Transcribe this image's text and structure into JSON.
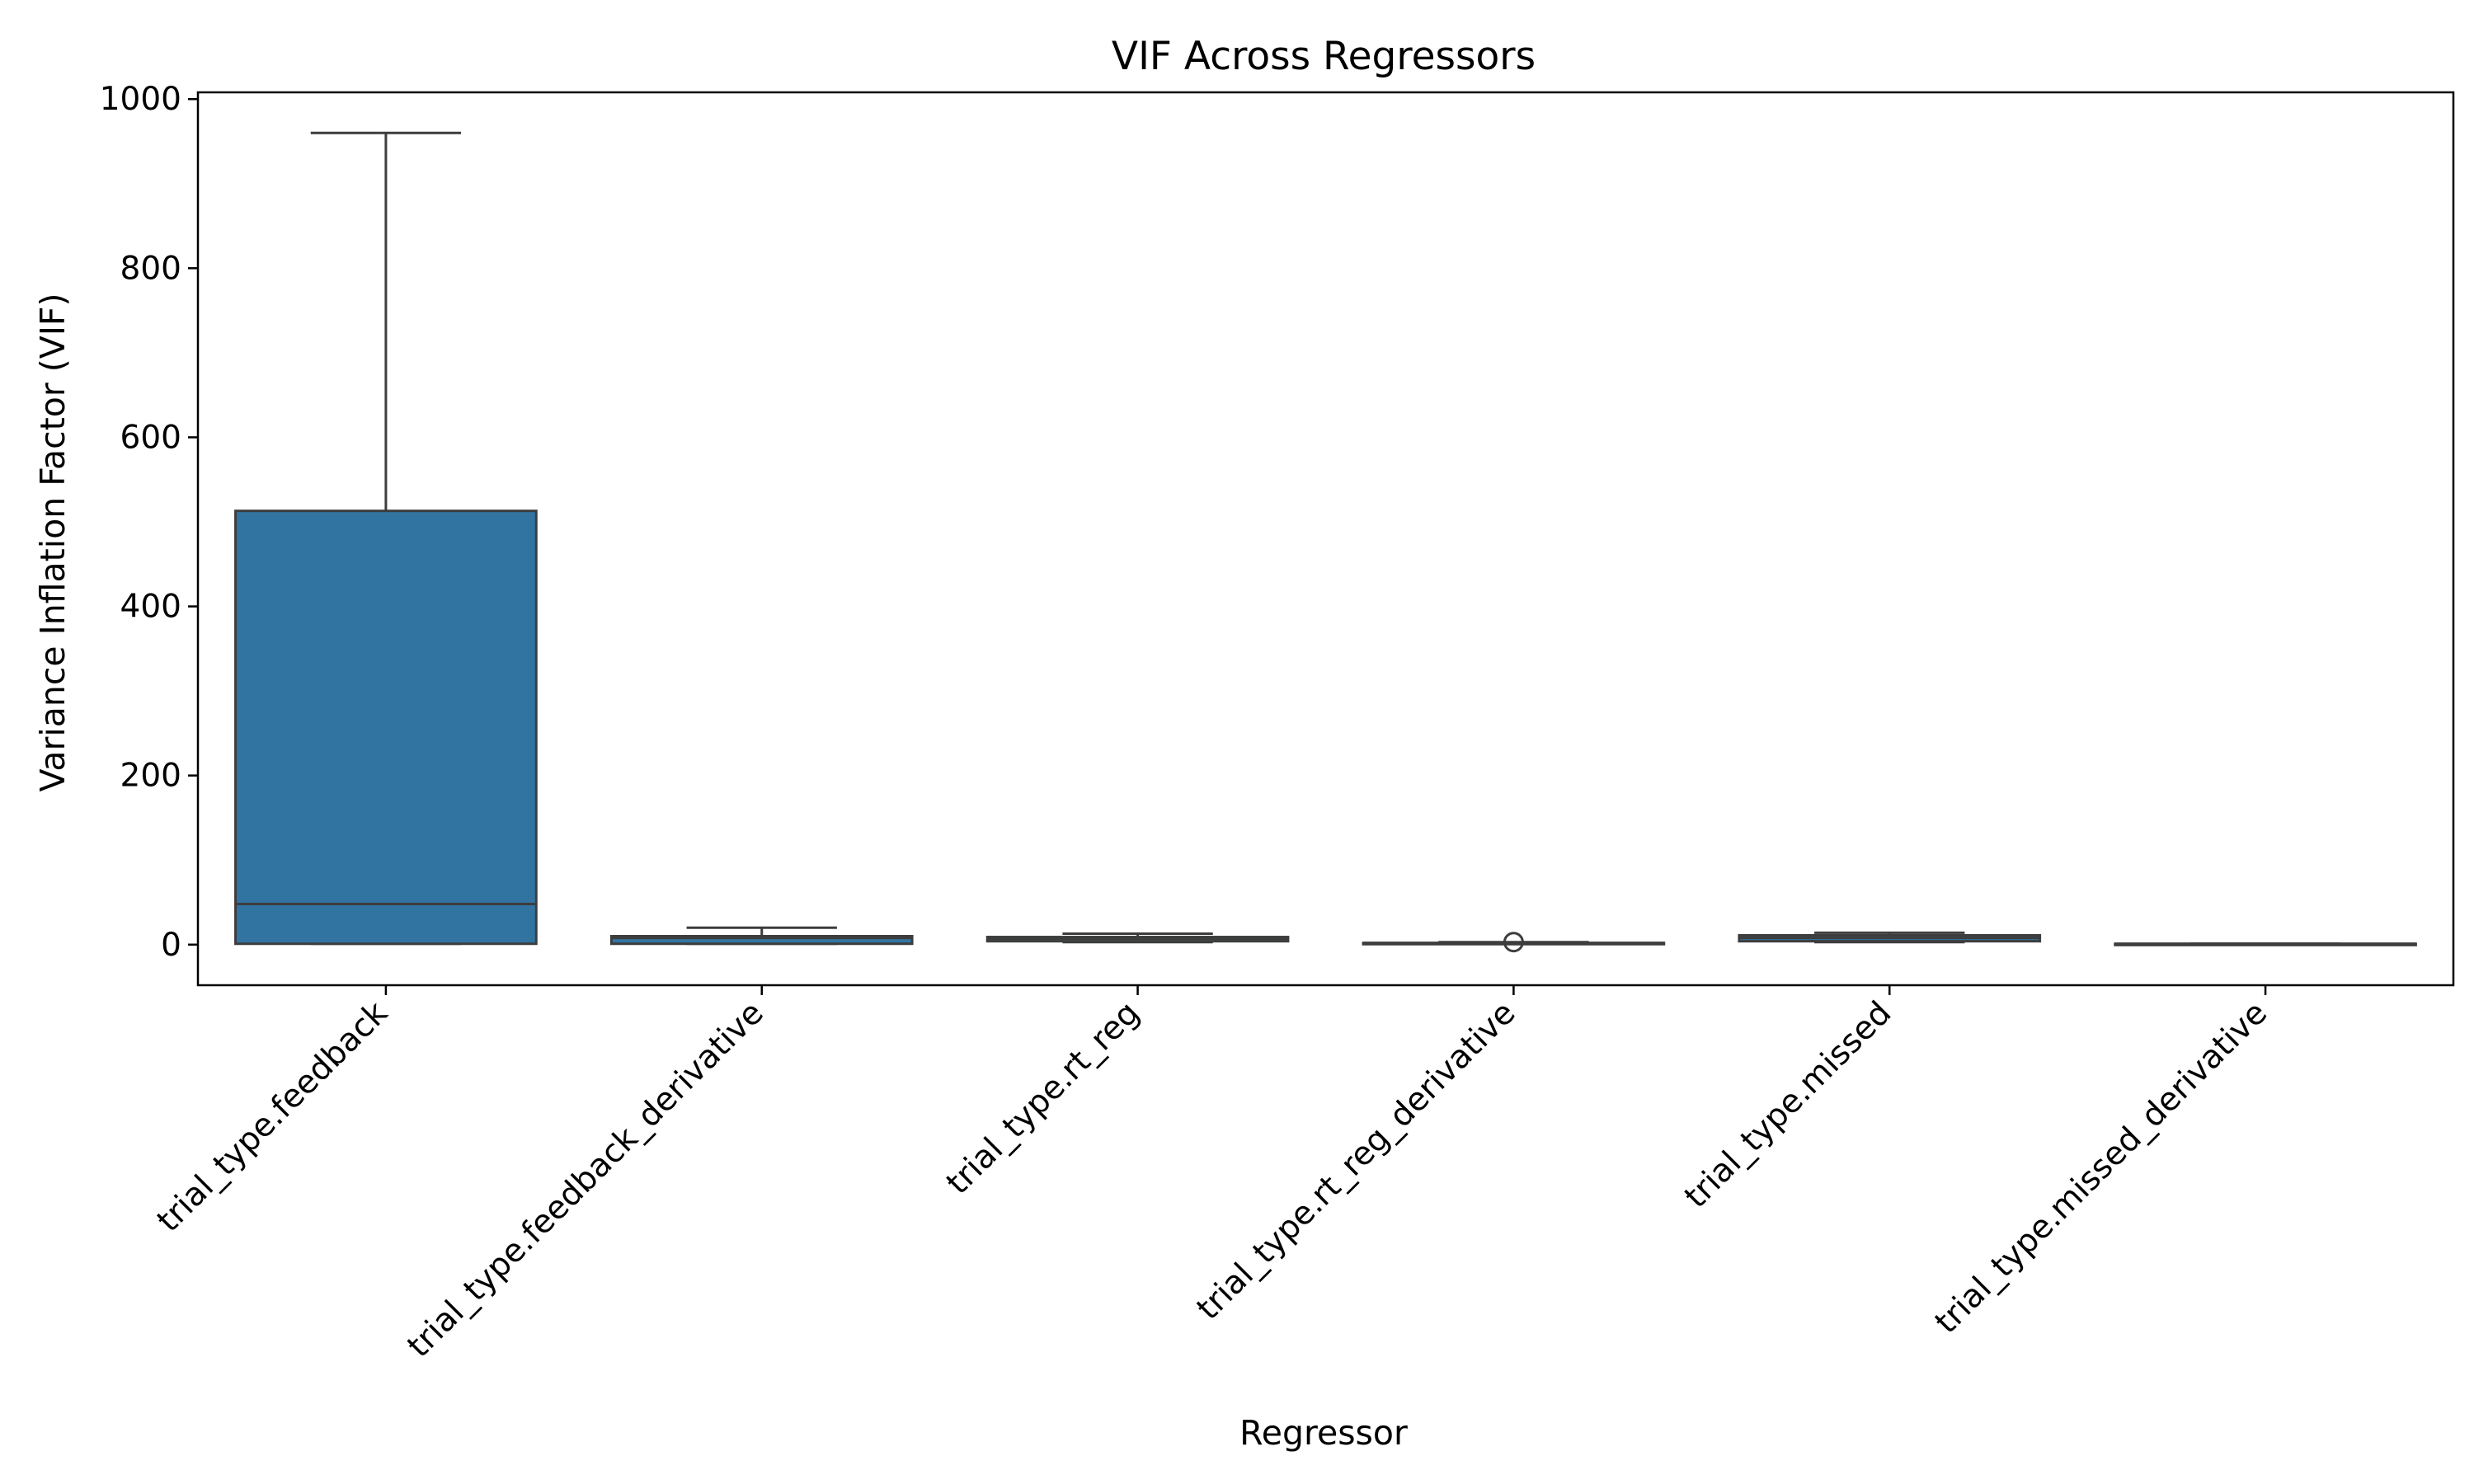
{
  "chart_data": {
    "type": "box",
    "title": "VIF Across Regressors",
    "xlabel": "Regressor",
    "ylabel": "Variance Inflation Factor (VIF)",
    "ylim": [
      -48,
      1008
    ],
    "yticks": [
      0,
      200,
      400,
      600,
      800,
      1000
    ],
    "grid": false,
    "colors": {
      "box_fill": "#3274a1",
      "line": "#3d3d3d",
      "axis": "#000000"
    },
    "categories": [
      "trial_type.feedback",
      "trial_type.feedback_derivative",
      "trial_type.rt_reg",
      "trial_type.rt_reg_derivative",
      "trial_type.missed",
      "trial_type.missed_derivative"
    ],
    "boxes": [
      {
        "category": "trial_type.feedback",
        "whisker_low": 1,
        "q1": 1,
        "median": 48,
        "q3": 513,
        "whisker_high": 960,
        "outliers": []
      },
      {
        "category": "trial_type.feedback_derivative",
        "whisker_low": 1,
        "q1": 1,
        "median": 8,
        "q3": 10,
        "whisker_high": 20,
        "outliers": []
      },
      {
        "category": "trial_type.rt_reg",
        "whisker_low": 3,
        "q1": 4,
        "median": 7,
        "q3": 9,
        "whisker_high": 13,
        "outliers": []
      },
      {
        "category": "trial_type.rt_reg_derivative",
        "whisker_low": 1,
        "q1": 1,
        "median": 2,
        "q3": 2,
        "whisker_high": 3,
        "outliers": [
          3
        ]
      },
      {
        "category": "trial_type.missed",
        "whisker_low": 3,
        "q1": 4,
        "median": 8,
        "q3": 11,
        "whisker_high": 14,
        "outliers": []
      },
      {
        "category": "trial_type.missed_derivative",
        "whisker_low": 1,
        "q1": 1,
        "median": 1,
        "q3": 1,
        "whisker_high": 1,
        "outliers": []
      }
    ]
  }
}
